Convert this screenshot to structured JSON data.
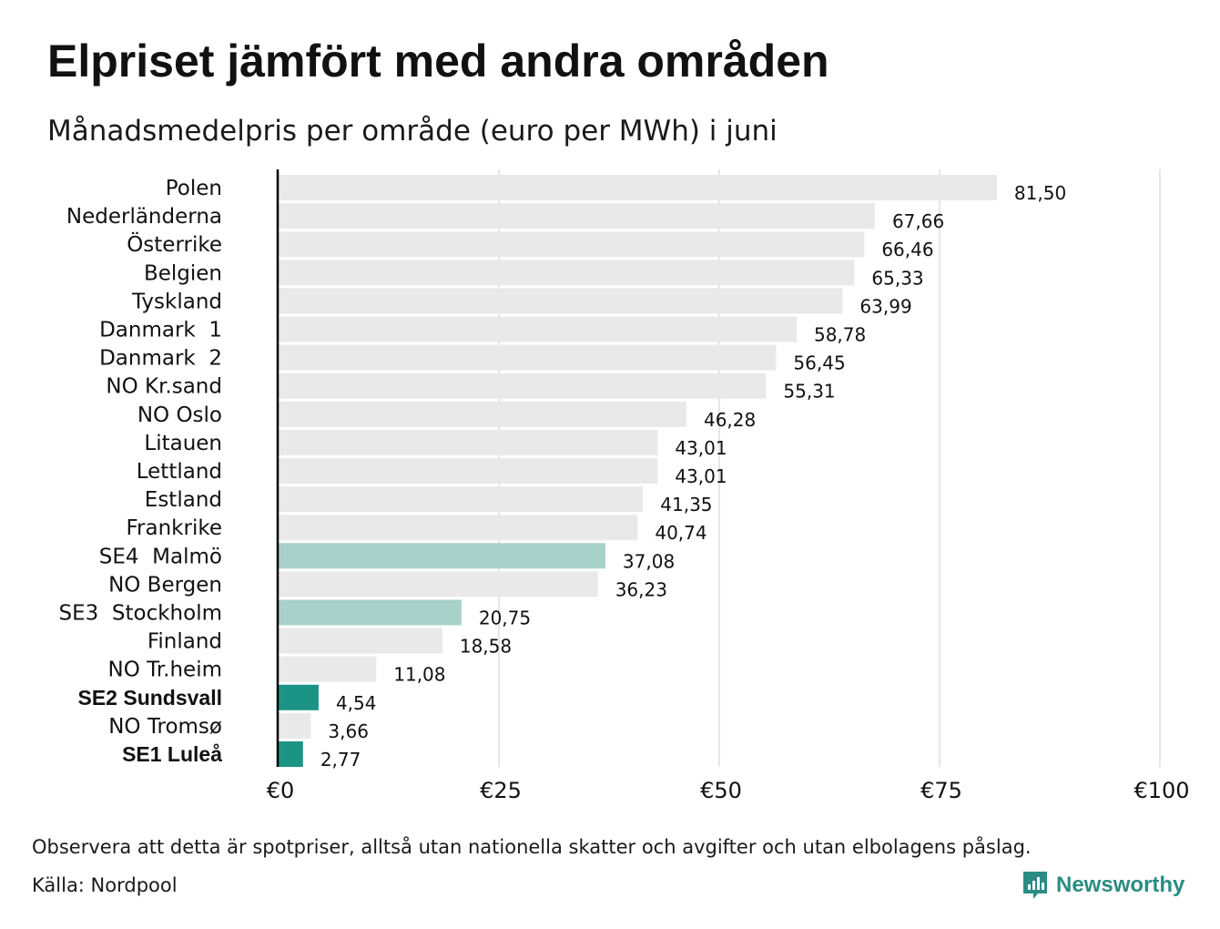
{
  "title": "Elpriset jämfört med andra områden",
  "subtitle": "Månadsmedelpris per område (euro per MWh) i juni",
  "note": "Observera att detta är spotpriser, alltså utan nationella skatter och avgifter och utan elbolagens påslag.",
  "source": "Källa: Nordpool",
  "brand": "Newsworthy",
  "colors": {
    "bar_default": "#e9e9e9",
    "bar_light_highlight": "#a8d1c9",
    "bar_highlight": "#1b9486",
    "grid": "#cccccc",
    "axis": "#000000",
    "brand": "#2a8c82"
  },
  "chart_data": {
    "type": "bar",
    "orientation": "horizontal",
    "categories": [
      "Polen",
      "Nederländerna",
      "Österrike",
      "Belgien",
      "Tyskland",
      "Danmark  1",
      "Danmark  2",
      "NO Kr.sand",
      "NO Oslo",
      "Litauen",
      "Lettland",
      "Estland",
      "Frankrike",
      "SE4  Malmö",
      "NO Bergen",
      "SE3  Stockholm",
      "Finland",
      "NO Tr.heim",
      "SE2 Sundsvall",
      "NO Tromsø",
      "SE1 Luleå"
    ],
    "values": [
      81.5,
      67.66,
      66.46,
      65.33,
      63.99,
      58.78,
      56.45,
      55.31,
      46.28,
      43.01,
      43.01,
      41.35,
      40.74,
      37.08,
      36.23,
      20.75,
      18.58,
      11.08,
      4.54,
      3.66,
      2.77
    ],
    "value_labels": [
      "81,50",
      "67,66",
      "66,46",
      "65,33",
      "63,99",
      "58,78",
      "56,45",
      "55,31",
      "46,28",
      "43,01",
      "43,01",
      "41,35",
      "40,74",
      "37,08",
      "36,23",
      "20,75",
      "18,58",
      "11,08",
      "4,54",
      "3,66",
      "2,77"
    ],
    "highlight": [
      "none",
      "none",
      "none",
      "none",
      "none",
      "none",
      "none",
      "none",
      "none",
      "none",
      "none",
      "none",
      "none",
      "light",
      "none",
      "light",
      "none",
      "none",
      "strong",
      "none",
      "strong"
    ],
    "bold_labels": [
      "SE2 Sundsvall",
      "SE1 Luleå"
    ],
    "xlim": [
      0,
      100
    ],
    "xticks": [
      0,
      25,
      50,
      75,
      100
    ],
    "xtick_labels": [
      "€0",
      "€25",
      "€50",
      "€75",
      "€100"
    ],
    "grid": true
  }
}
